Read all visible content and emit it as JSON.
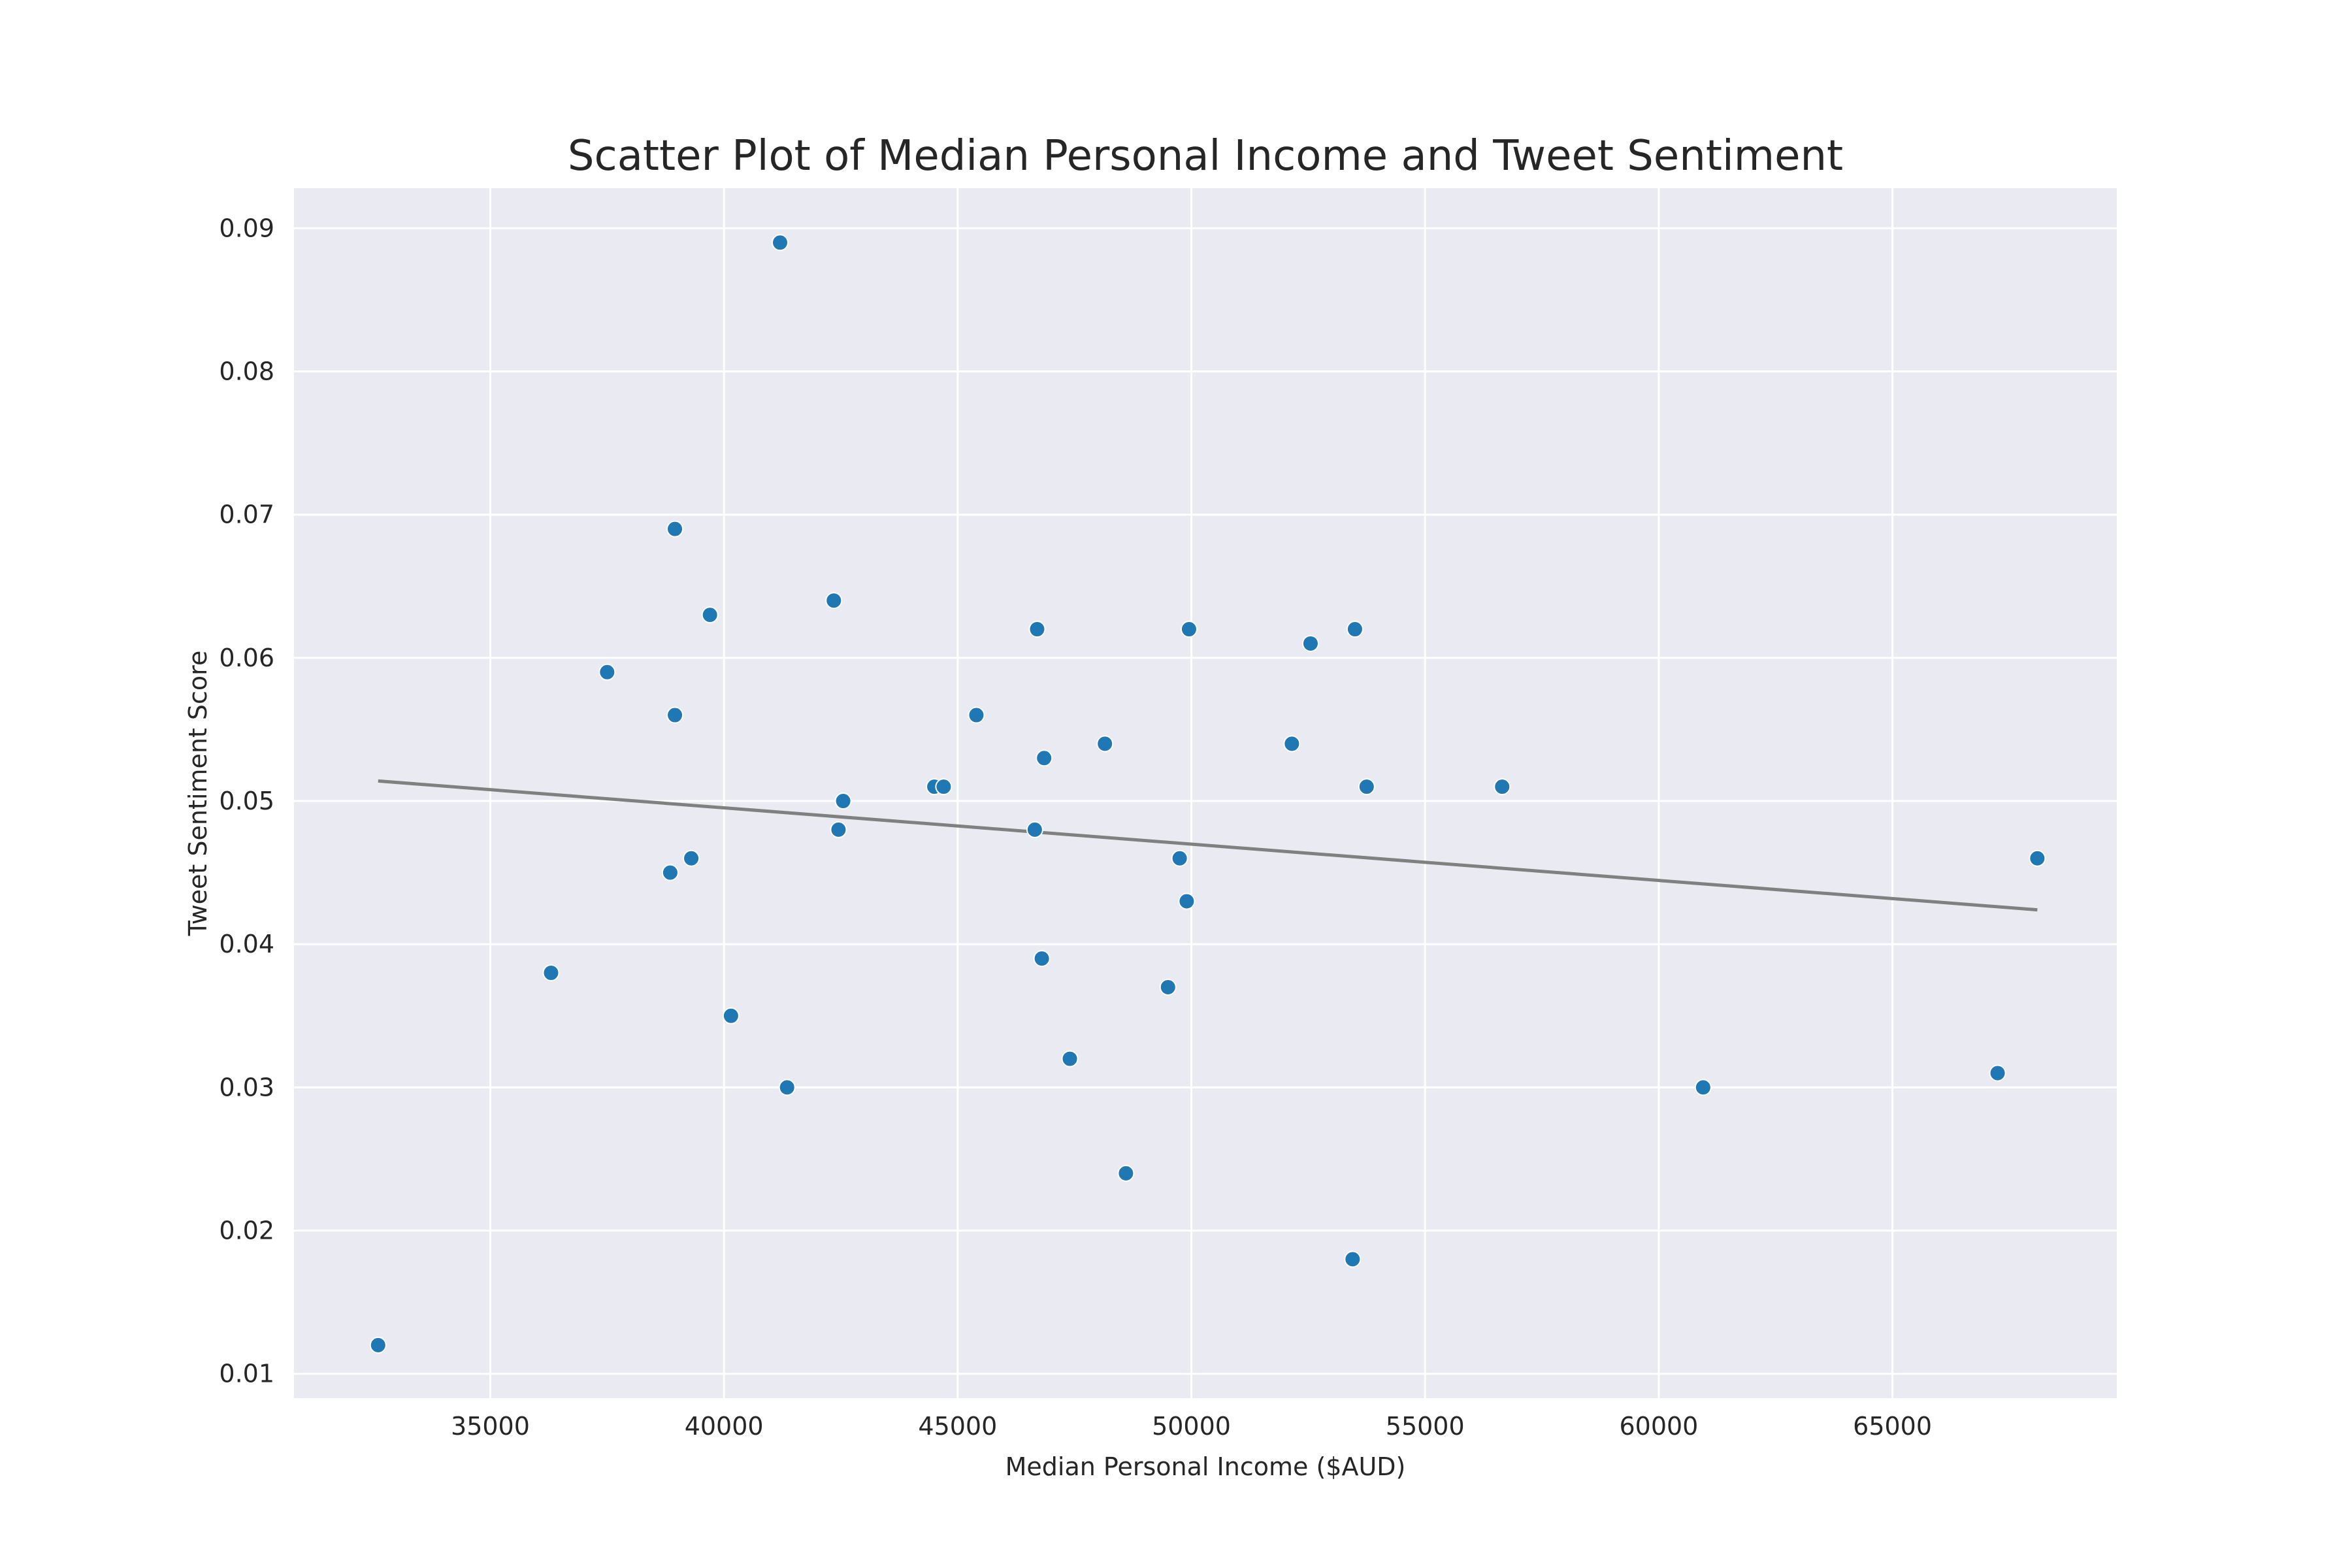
{
  "chart_data": {
    "type": "scatter",
    "title": "Scatter Plot of Median Personal Income and Tweet Sentiment",
    "xlabel": "Median Personal Income ($AUD)",
    "ylabel": "Tweet Sentiment Score",
    "xlim": [
      30800,
      69800
    ],
    "ylim": [
      0.0083,
      0.0928
    ],
    "xticks": [
      35000,
      40000,
      45000,
      50000,
      55000,
      60000,
      65000
    ],
    "xtick_labels": [
      "35000",
      "40000",
      "45000",
      "50000",
      "55000",
      "60000",
      "65000"
    ],
    "yticks": [
      0.01,
      0.02,
      0.03,
      0.04,
      0.05,
      0.06,
      0.07,
      0.08,
      0.09
    ],
    "ytick_labels": [
      "0.01",
      "0.02",
      "0.03",
      "0.04",
      "0.05",
      "0.06",
      "0.07",
      "0.08",
      "0.09"
    ],
    "grid": true,
    "legend": "none",
    "colors": {
      "background": "#eaeaf2",
      "grid": "#ffffff",
      "points": "#1f77b4",
      "point_edge": "#ffffff",
      "trend": "#808080"
    },
    "points": [
      {
        "x": 32600,
        "y": 0.012
      },
      {
        "x": 36300,
        "y": 0.038
      },
      {
        "x": 37500,
        "y": 0.059
      },
      {
        "x": 38850,
        "y": 0.045
      },
      {
        "x": 38950,
        "y": 0.069
      },
      {
        "x": 38950,
        "y": 0.056
      },
      {
        "x": 39300,
        "y": 0.046
      },
      {
        "x": 39700,
        "y": 0.063
      },
      {
        "x": 40150,
        "y": 0.035
      },
      {
        "x": 41200,
        "y": 0.089
      },
      {
        "x": 41350,
        "y": 0.03
      },
      {
        "x": 42350,
        "y": 0.064
      },
      {
        "x": 42450,
        "y": 0.048
      },
      {
        "x": 42550,
        "y": 0.05
      },
      {
        "x": 44500,
        "y": 0.051
      },
      {
        "x": 44700,
        "y": 0.051
      },
      {
        "x": 45400,
        "y": 0.056
      },
      {
        "x": 46650,
        "y": 0.048
      },
      {
        "x": 46700,
        "y": 0.062
      },
      {
        "x": 46800,
        "y": 0.039
      },
      {
        "x": 46850,
        "y": 0.053
      },
      {
        "x": 47400,
        "y": 0.032
      },
      {
        "x": 48150,
        "y": 0.054
      },
      {
        "x": 48600,
        "y": 0.024
      },
      {
        "x": 49500,
        "y": 0.037
      },
      {
        "x": 49750,
        "y": 0.046
      },
      {
        "x": 49900,
        "y": 0.043
      },
      {
        "x": 49950,
        "y": 0.062
      },
      {
        "x": 52150,
        "y": 0.054
      },
      {
        "x": 52550,
        "y": 0.061
      },
      {
        "x": 53450,
        "y": 0.018
      },
      {
        "x": 53500,
        "y": 0.062
      },
      {
        "x": 53750,
        "y": 0.051
      },
      {
        "x": 56650,
        "y": 0.051
      },
      {
        "x": 60950,
        "y": 0.03
      },
      {
        "x": 67250,
        "y": 0.031
      },
      {
        "x": 68100,
        "y": 0.046
      }
    ],
    "trend_line": {
      "x": [
        32600,
        68100
      ],
      "y": [
        0.0514,
        0.0424
      ]
    }
  }
}
